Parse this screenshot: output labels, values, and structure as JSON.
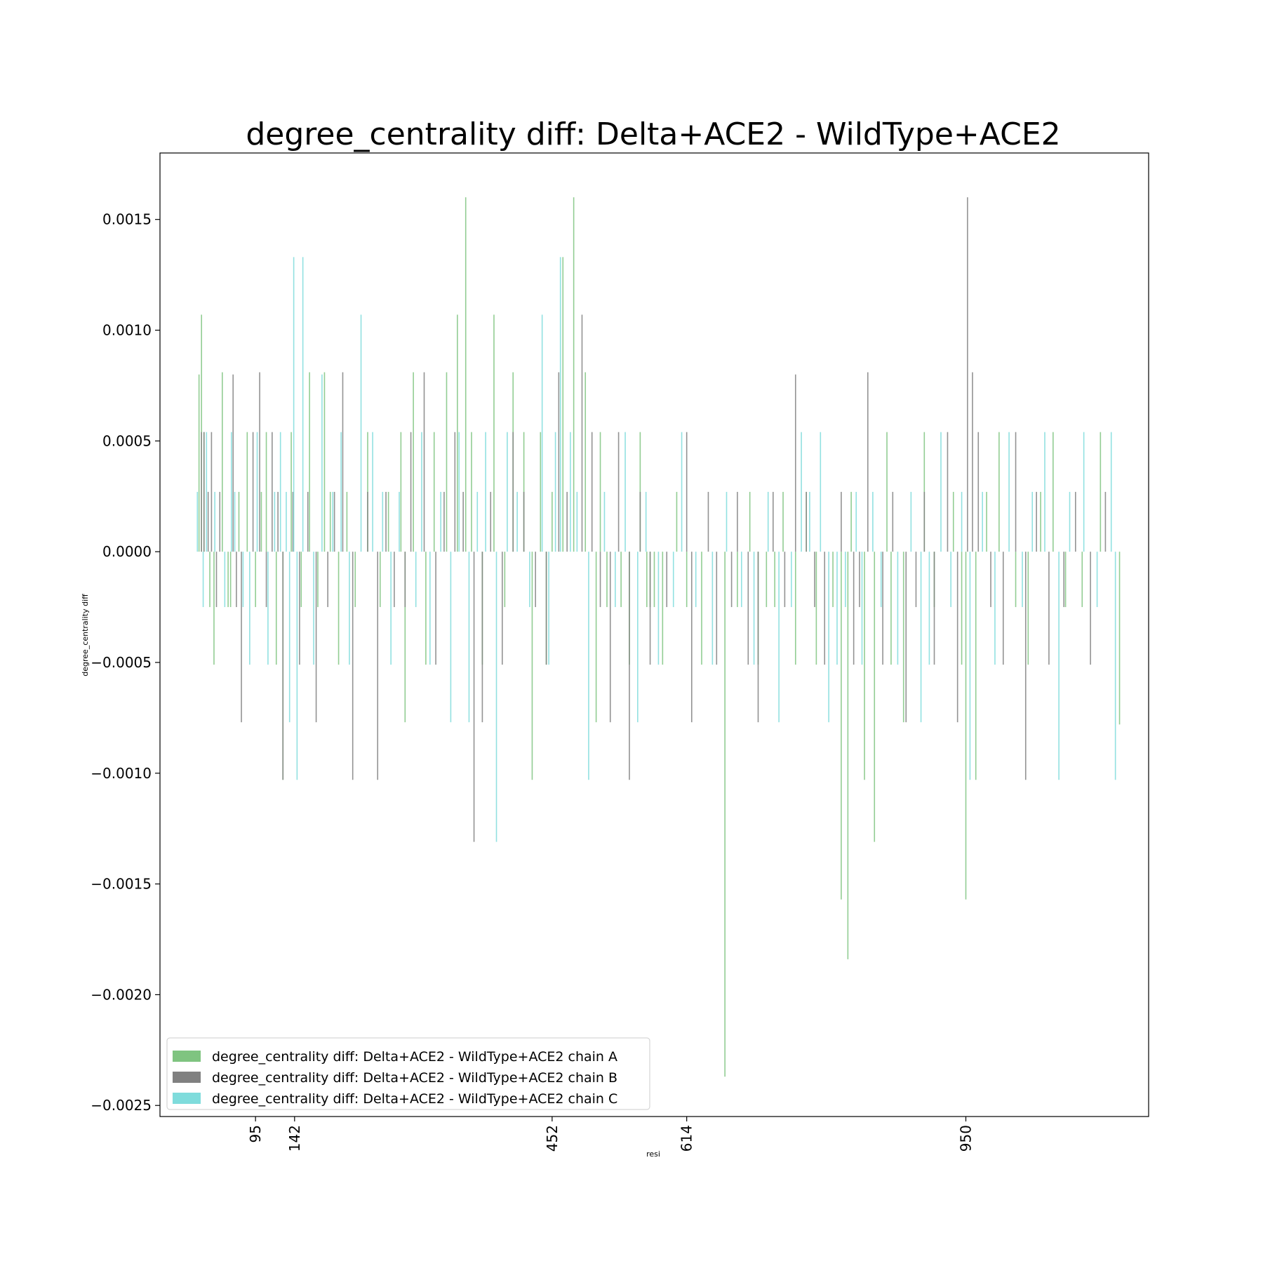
{
  "chart_data": {
    "type": "bar",
    "title": "degree_centrality diff: Delta+ACE2 - WildType+ACE2",
    "xlabel": "resi",
    "ylabel": "degree_centrality diff",
    "xlim": [
      -20,
      1170
    ],
    "ylim": [
      -0.00255,
      0.0018
    ],
    "x_ticks": [
      95,
      142,
      452,
      614,
      950
    ],
    "y_ticks": [
      0.0015,
      0.001,
      0.0005,
      0.0,
      -0.0005,
      -0.001,
      -0.0015,
      -0.002,
      -0.0025
    ],
    "y_tick_labels": [
      "0.0015",
      "0.0010",
      "0.0005",
      "0.0000",
      "−0.0005",
      "−0.0010",
      "−0.0015",
      "−0.0020",
      "−0.0025"
    ],
    "grid": false,
    "legend_position": "lower-left",
    "colors": {
      "A": "#7fc480",
      "B": "#808080",
      "C": "#7fdcdc"
    },
    "series": [
      {
        "name": "degree_centrality diff: Delta+ACE2 - WildType+ACE2 chain A",
        "chain": "A",
        "x": [
          27,
          30,
          33,
          40,
          45,
          55,
          62,
          65,
          75,
          85,
          95,
          102,
          108,
          120,
          128,
          138,
          150,
          160,
          170,
          178,
          185,
          195,
          205,
          215,
          230,
          245,
          255,
          270,
          275,
          285,
          300,
          310,
          325,
          338,
          348,
          355,
          368,
          382,
          395,
          405,
          418,
          428,
          438,
          445,
          452,
          465,
          478,
          492,
          505,
          510,
          518,
          535,
          545,
          558,
          566,
          570,
          575,
          585,
          602,
          614,
          632,
          660,
          675,
          690,
          700,
          710,
          720,
          730,
          745,
          758,
          770,
          790,
          800,
          808,
          812,
          828,
          840,
          855,
          860,
          875,
          900,
          912,
          935,
          945,
          950,
          962,
          975,
          990,
          1010,
          1025,
          1040,
          1055,
          1070,
          1090,
          1112,
          1135
        ],
        "values": [
          0.0008,
          0.00107,
          0.00054,
          -0.00025,
          -0.00051,
          0.00081,
          -0.00025,
          -0.00025,
          0.00027,
          0.00054,
          -0.00025,
          0.00027,
          0.00054,
          -0.00051,
          -0.00103,
          0.00054,
          -0.00025,
          0.00081,
          -0.00025,
          0.00081,
          0.00027,
          -0.00051,
          0.00027,
          -0.00025,
          0.00054,
          -0.00025,
          0.00027,
          0.00054,
          -0.00077,
          0.00081,
          -0.00051,
          0.00054,
          0.00081,
          0.00107,
          0.0016,
          0.00054,
          -0.00051,
          0.00107,
          -0.00025,
          0.00081,
          0.00054,
          -0.00103,
          0.00054,
          -0.00051,
          0.00027,
          0.00133,
          0.0016,
          0.00081,
          -0.00077,
          0.00054,
          -0.00025,
          -0.00025,
          -0.00051,
          0.00054,
          -0.00025,
          -0.00025,
          -0.00025,
          -0.00051,
          0.00027,
          -0.00025,
          -0.00051,
          -0.00237,
          -0.00025,
          0.00027,
          -0.00051,
          -0.00025,
          -0.00025,
          0.00027,
          -0.00051,
          0.00027,
          -0.00051,
          -0.00025,
          -0.00157,
          -0.00184,
          0.00027,
          -0.00103,
          -0.00131,
          0.00054,
          -0.00051,
          -0.00077,
          0.00054,
          -0.00025,
          0.00027,
          -0.00051,
          -0.00157,
          -0.00103,
          0.00027,
          0.00054,
          -0.00025,
          -0.00051,
          0.00027,
          0.00054,
          -0.00025,
          -0.00025,
          0.00054,
          -0.00078
        ]
      },
      {
        "name": "degree_centrality diff: Delta+ACE2 - WildType+ACE2 chain B",
        "chain": "B",
        "x": [
          30,
          33,
          38,
          42,
          48,
          52,
          68,
          72,
          78,
          92,
          100,
          108,
          115,
          122,
          128,
          140,
          148,
          158,
          168,
          182,
          190,
          200,
          212,
          230,
          242,
          252,
          262,
          275,
          282,
          298,
          312,
          322,
          335,
          345,
          358,
          368,
          378,
          392,
          405,
          418,
          432,
          445,
          460,
          470,
          488,
          500,
          510,
          522,
          532,
          545,
          558,
          570,
          590,
          614,
          620,
          640,
          650,
          668,
          675,
          688,
          700,
          718,
          732,
          745,
          758,
          768,
          780,
          800,
          815,
          822,
          832,
          850,
          862,
          878,
          890,
          900,
          912,
          928,
          940,
          952,
          958,
          965,
          980,
          995,
          1010,
          1022,
          1035,
          1050,
          1068,
          1082,
          1100,
          1118
        ],
        "values": [
          0.00054,
          0.00054,
          0.00027,
          0.00054,
          -0.00025,
          0.00027,
          0.0008,
          -0.00025,
          -0.00077,
          0.00054,
          0.00081,
          -0.00025,
          0.00054,
          0.00027,
          -0.00103,
          0.00027,
          -0.00051,
          0.00027,
          -0.00077,
          -0.00025,
          0.00027,
          0.00081,
          -0.00103,
          0.00027,
          -0.00103,
          0.00027,
          -0.00025,
          -0.00025,
          0.00054,
          0.00081,
          -0.00051,
          0.00027,
          0.00054,
          0.00027,
          -0.00131,
          -0.00077,
          0.00027,
          -0.00051,
          0.00054,
          0.00027,
          -0.00025,
          -0.00051,
          0.00081,
          0.00027,
          0.00107,
          0.00054,
          -0.00025,
          -0.00077,
          0.00054,
          -0.00103,
          0.00027,
          -0.00051,
          -0.00025,
          0.00054,
          -0.00077,
          0.00027,
          -0.00051,
          -0.00025,
          0.00027,
          -0.00051,
          -0.00077,
          0.00027,
          -0.00025,
          0.0008,
          0.00027,
          -0.00025,
          -0.00051,
          0.00027,
          -0.00051,
          -0.00025,
          0.00081,
          -0.00051,
          0.00027,
          -0.00077,
          -0.00025,
          0.00027,
          -0.00051,
          0.00054,
          -0.00077,
          0.0016,
          0.00081,
          0.00054,
          -0.00025,
          -0.00051,
          0.00054,
          -0.00103,
          0.00027,
          -0.00051,
          -0.00025,
          0.00027,
          -0.00051,
          0.00027
        ]
      },
      {
        "name": "degree_centrality diff: Delta+ACE2 - WildType+ACE2 chain C",
        "chain": "C",
        "x": [
          25,
          32,
          36,
          46,
          58,
          66,
          70,
          80,
          88,
          97,
          110,
          118,
          125,
          132,
          136,
          141,
          145,
          152,
          165,
          175,
          188,
          198,
          208,
          222,
          236,
          248,
          258,
          268,
          288,
          295,
          305,
          318,
          330,
          340,
          352,
          362,
          372,
          385,
          398,
          410,
          425,
          440,
          448,
          456,
          462,
          474,
          482,
          496,
          515,
          528,
          540,
          555,
          565,
          580,
          598,
          608,
          625,
          645,
          662,
          680,
          695,
          712,
          725,
          740,
          752,
          762,
          775,
          785,
          795,
          805,
          818,
          825,
          838,
          848,
          868,
          884,
          896,
          906,
          920,
          932,
          945,
          955,
          970,
          985,
          1002,
          1018,
          1030,
          1045,
          1062,
          1075,
          1092,
          1108,
          1125,
          1130
        ],
        "values": [
          0.00027,
          -0.00025,
          0.00054,
          0.00027,
          -0.00025,
          0.00054,
          0.00027,
          -0.00025,
          -0.00051,
          0.00054,
          -0.00051,
          0.00027,
          0.00054,
          0.00027,
          -0.00077,
          0.00133,
          -0.00103,
          0.00133,
          -0.00051,
          0.0008,
          0.00027,
          0.00054,
          -0.00051,
          0.00107,
          0.00054,
          0.00027,
          -0.00051,
          0.00027,
          -0.00025,
          0.00054,
          -0.00051,
          0.00027,
          -0.00077,
          0.00054,
          -0.00077,
          0.00027,
          0.00054,
          -0.00131,
          0.00054,
          0.00027,
          -0.00025,
          0.00107,
          -0.00051,
          0.00054,
          0.00133,
          0.00054,
          0.00027,
          -0.00103,
          0.00027,
          -0.00025,
          0.00054,
          -0.00077,
          0.00027,
          -0.00051,
          -0.00025,
          0.00054,
          -0.00025,
          -0.00051,
          0.00027,
          -0.00025,
          -0.00051,
          0.00027,
          -0.00077,
          -0.00025,
          0.00054,
          0.00027,
          0.00054,
          -0.00077,
          -0.00051,
          -0.00025,
          0.00027,
          -0.00051,
          0.00027,
          -0.00025,
          -0.00051,
          0.00027,
          -0.00077,
          -0.00051,
          0.00054,
          -0.00025,
          0.00027,
          -0.00103,
          0.00027,
          -0.00051,
          0.00054,
          -0.00025,
          0.00027,
          0.00054,
          -0.00103,
          0.00027,
          0.00054,
          -0.00025,
          0.00054,
          -0.00103
        ]
      }
    ]
  }
}
